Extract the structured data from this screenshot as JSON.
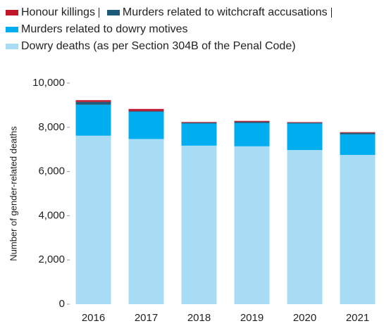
{
  "chart_data": {
    "type": "stacked_bar",
    "y_label": "Number of gender-related deaths",
    "categories": [
      "2016",
      "2017",
      "2018",
      "2019",
      "2020",
      "2021"
    ],
    "series": [
      {
        "name": "Honour killings",
        "color": "#c0172d",
        "values": [
          77,
          90,
          30,
          40,
          25,
          30
        ]
      },
      {
        "name": "Murders related to witchcraft accusations",
        "color": "#1f5a7a",
        "values": [
          130,
          40,
          40,
          60,
          40,
          70
        ]
      },
      {
        "name": "Murders related to dowry motives",
        "color": "#00aeef",
        "values": [
          1400,
          1230,
          1000,
          1050,
          1200,
          930
        ]
      },
      {
        "name": "Dowry deaths (as per Section 304B of the Penal Code)",
        "color": "#a8dcf5",
        "values": [
          7620,
          7470,
          7170,
          7140,
          6970,
          6750
        ]
      }
    ],
    "ylim": [
      0,
      10000
    ],
    "yticks": [
      0,
      {
        "value": 2000,
        "label": "2,000"
      },
      {
        "value": 4000,
        "label": "4,000"
      },
      {
        "value": 6000,
        "label": "6,000"
      },
      {
        "value": 8000,
        "label": "8,000"
      },
      {
        "value": 10000,
        "label": "10,000"
      }
    ]
  }
}
